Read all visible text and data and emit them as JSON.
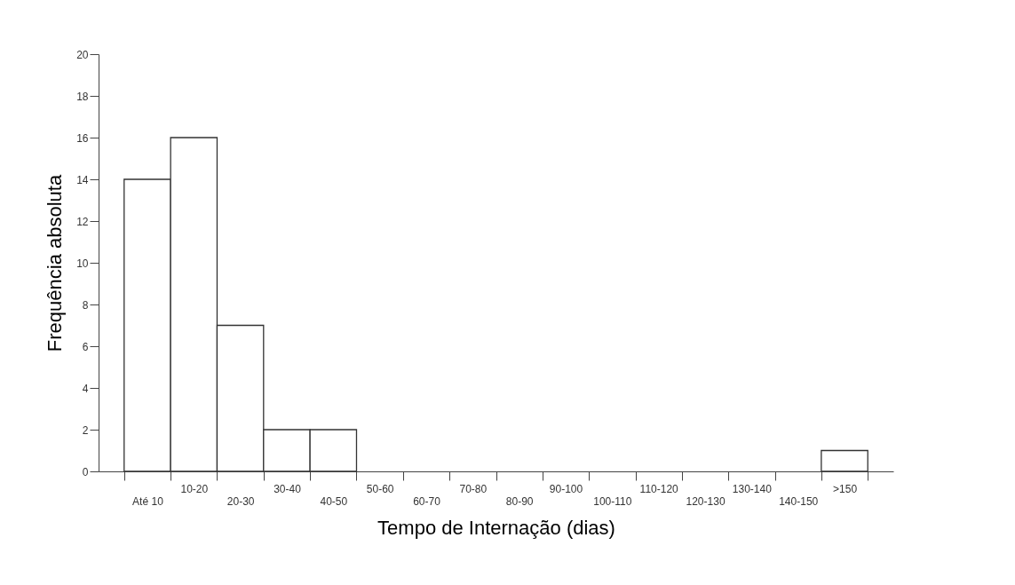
{
  "chart_data": {
    "type": "bar",
    "xlabel": "Tempo de Internação (dias)",
    "ylabel": "Frequência absoluta",
    "categories": [
      "Até 10",
      "10-20",
      "20-30",
      "30-40",
      "40-50",
      "50-60",
      "60-70",
      "70-80",
      "80-90",
      "90-100",
      "100-110",
      "110-120",
      "120-130",
      "130-140",
      "140-150",
      ">150"
    ],
    "values": [
      14,
      16,
      7,
      2,
      2,
      0,
      0,
      0,
      0,
      0,
      0,
      0,
      0,
      0,
      0,
      1
    ],
    "color": "#ffffff",
    "ylim": [
      0,
      20
    ],
    "yticks": [
      0,
      2,
      4,
      6,
      8,
      10,
      12,
      14,
      16,
      18,
      20
    ],
    "grid": false
  }
}
